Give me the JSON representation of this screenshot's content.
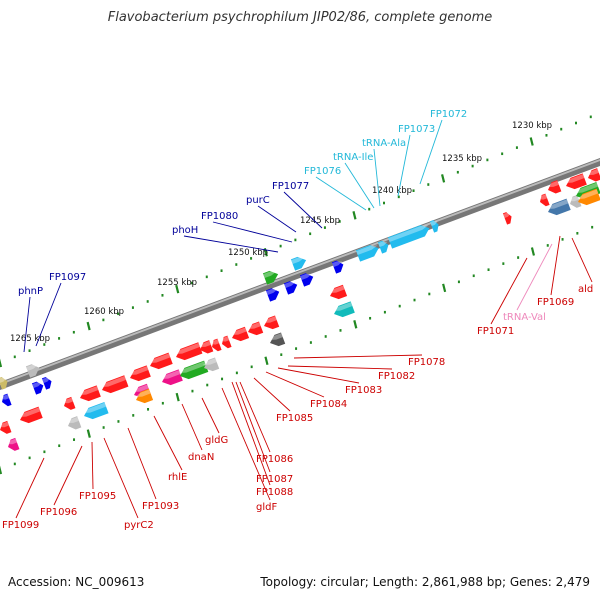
{
  "title": "Flavobacterium psychrophilum JIP02/86, complete genome",
  "accession": "Accession: NC_009613",
  "summary": "Topology: circular; Length: 2,861,988 bp; Genes: 2,479",
  "colors": {
    "backbone": "#888888",
    "tick": "#228822",
    "label_red": "#cc0000",
    "label_blue": "#000099",
    "label_cyan": "#22b8d8",
    "label_pink": "#ee88bb",
    "arrow_red": "#ff1a1a",
    "arrow_blue": "#0000ee",
    "arrow_cyan": "#22bbee",
    "arrow_green": "#22aa22",
    "arrow_gray": "#bbbbbb",
    "arrow_darkgray": "#555555",
    "arrow_teal": "#11bbbb",
    "arrow_magenta": "#ee1188",
    "arrow_orange": "#ff8800",
    "arrow_steel": "#4477aa",
    "arrow_olive": "#ccbb66"
  },
  "scale": {
    "labels": [
      "1230 kbp",
      "1235 kbp",
      "1240 kbp",
      "1245 kbp",
      "1250 kbp",
      "1255 kbp",
      "1260 kbp",
      "1265 kbp"
    ]
  },
  "gene_labels": {
    "top": [
      {
        "text": "phnP",
        "color": "blue"
      },
      {
        "text": "FP1097",
        "color": "blue"
      },
      {
        "text": "phoH",
        "color": "blue"
      },
      {
        "text": "FP1080",
        "color": "blue"
      },
      {
        "text": "purC",
        "color": "blue"
      },
      {
        "text": "FP1077",
        "color": "blue"
      },
      {
        "text": "FP1076",
        "color": "cyan"
      },
      {
        "text": "tRNA-Ile",
        "color": "cyan"
      },
      {
        "text": "tRNA-Ala",
        "color": "cyan"
      },
      {
        "text": "FP1073",
        "color": "cyan"
      },
      {
        "text": "FP1072",
        "color": "cyan"
      }
    ],
    "bottom": [
      {
        "text": "FP1099",
        "color": "red"
      },
      {
        "text": "FP1096",
        "color": "red"
      },
      {
        "text": "FP1095",
        "color": "red"
      },
      {
        "text": "pyrC2",
        "color": "red"
      },
      {
        "text": "FP1093",
        "color": "red"
      },
      {
        "text": "rhlE",
        "color": "red"
      },
      {
        "text": "dnaN",
        "color": "red"
      },
      {
        "text": "gldG",
        "color": "red"
      },
      {
        "text": "FP1086",
        "color": "red"
      },
      {
        "text": "FP1087",
        "color": "red"
      },
      {
        "text": "FP1088",
        "color": "red"
      },
      {
        "text": "gldF",
        "color": "red"
      },
      {
        "text": "FP1085",
        "color": "red"
      },
      {
        "text": "FP1084",
        "color": "red"
      },
      {
        "text": "FP1083",
        "color": "red"
      },
      {
        "text": "FP1082",
        "color": "red"
      },
      {
        "text": "FP1078",
        "color": "red"
      },
      {
        "text": "FP1071",
        "color": "red"
      },
      {
        "text": "tRNA-Val",
        "color": "pink"
      },
      {
        "text": "FP1069",
        "color": "red"
      },
      {
        "text": "ald",
        "color": "red"
      }
    ]
  }
}
